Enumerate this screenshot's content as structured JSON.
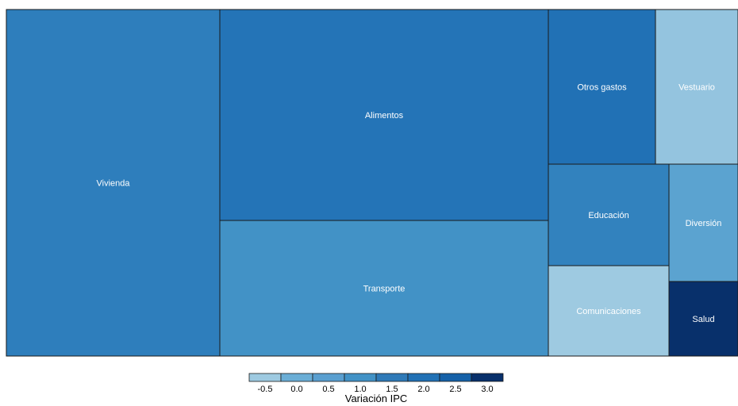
{
  "chart_data": {
    "type": "treemap",
    "title": "",
    "cells": [
      {
        "label": "Vivienda",
        "value": 1.6
      },
      {
        "label": "Alimentos",
        "value": 1.9
      },
      {
        "label": "Transporte",
        "value": 1.0
      },
      {
        "label": "Otros gastos",
        "value": 2.0
      },
      {
        "label": "Vestuario",
        "value": -0.4
      },
      {
        "label": "Educación",
        "value": 1.5
      },
      {
        "label": "Diversión",
        "value": 0.4
      },
      {
        "label": "Comunicaciones",
        "value": -0.5
      },
      {
        "label": "Salud",
        "value": 3.0
      }
    ],
    "legend": {
      "title": "Variación IPC",
      "ticks": [
        "-0.5",
        "0.0",
        "0.5",
        "1.0",
        "1.5",
        "2.0",
        "2.5",
        "3.0"
      ],
      "colors": [
        "#9ecae1",
        "#6baed6",
        "#5a9fd0",
        "#4292c6",
        "#2f7ab8",
        "#2171b5",
        "#1561a8",
        "#08306b"
      ]
    }
  }
}
